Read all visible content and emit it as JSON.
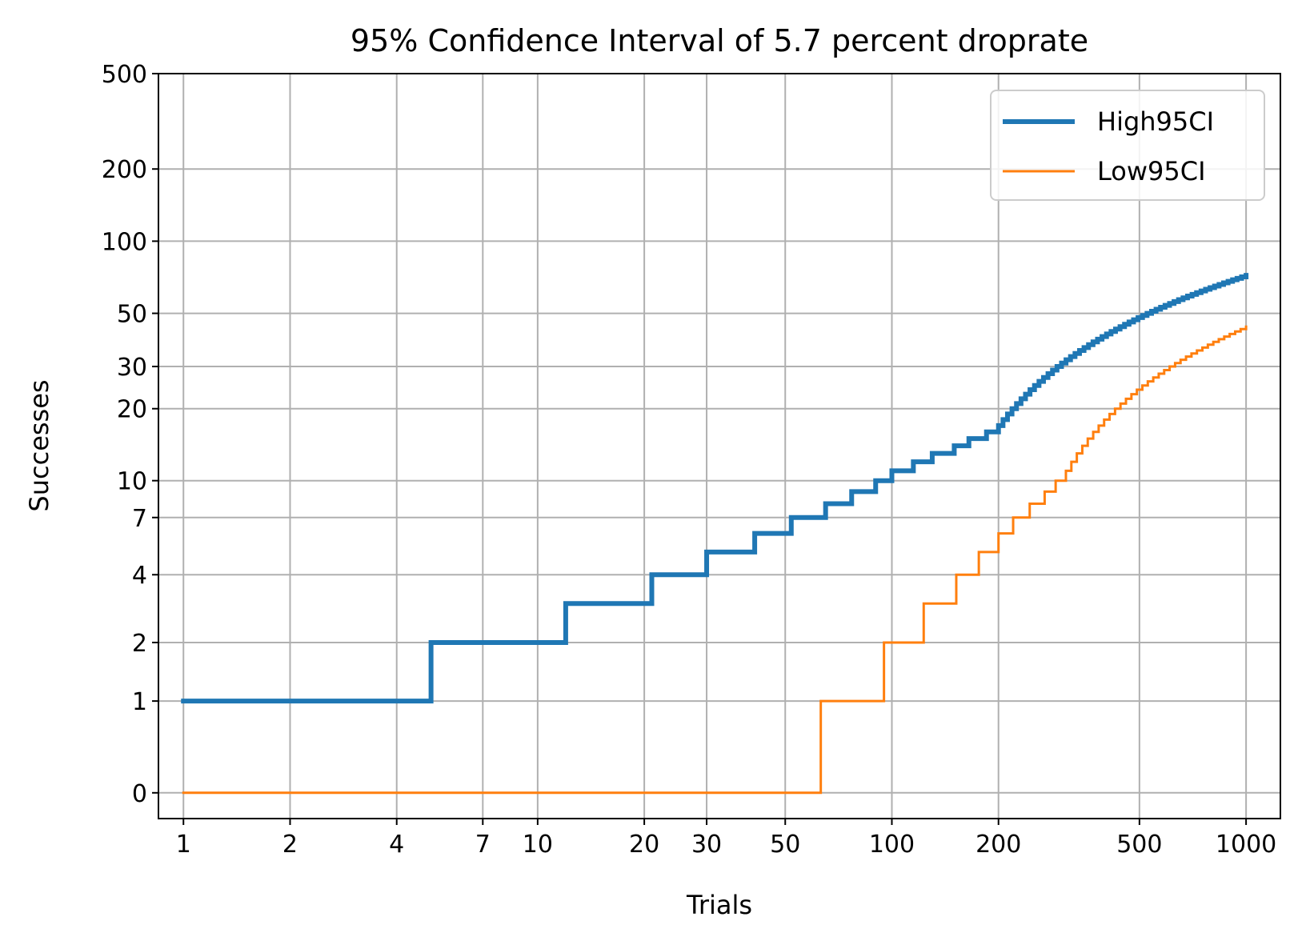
{
  "chart_data": {
    "type": "line",
    "title": "95% Confidence Interval of 5.7 percent droprate",
    "xlabel": "Trials",
    "ylabel": "Successes",
    "x_scale": "log",
    "y_scale": "custom",
    "xlim": [
      0.85,
      1250
    ],
    "ylim": [
      -0.25,
      500
    ],
    "x_ticks": [
      1,
      2,
      4,
      7,
      10,
      20,
      30,
      50,
      100,
      200,
      500,
      1000
    ],
    "x_tick_labels": [
      "1",
      "2",
      "4",
      "7",
      "10",
      "20",
      "30",
      "50",
      "100",
      "200",
      "500",
      "1000"
    ],
    "y_ticks": [
      0,
      1,
      2,
      4,
      7,
      10,
      20,
      30,
      50,
      100,
      200,
      500
    ],
    "y_tick_labels": [
      "0",
      "1",
      "2",
      "4",
      "7",
      "10",
      "20",
      "30",
      "50",
      "100",
      "200",
      "500"
    ],
    "grid": true,
    "legend_position": "top-right",
    "series": [
      {
        "name": "High95CI",
        "color": "#1f77b4",
        "step": "post",
        "x": [
          1,
          5,
          12,
          21,
          30,
          41,
          52,
          65,
          77,
          90,
          100,
          115,
          130,
          150,
          165,
          185,
          200
        ],
        "y": [
          1,
          2,
          3,
          4,
          5,
          6,
          7,
          8,
          9,
          10,
          11,
          12,
          13,
          14,
          15,
          16,
          17
        ],
        "tail_x": [
          200,
          1000
        ],
        "tail_y": [
          17,
          72
        ]
      },
      {
        "name": "Low95CI",
        "color": "#ff7f0e",
        "step": "post",
        "x": [
          1,
          63,
          95,
          123,
          152,
          176,
          200,
          220,
          245,
          270,
          290,
          310
        ],
        "y": [
          0,
          1,
          2,
          3,
          4,
          5,
          6,
          7,
          8,
          9,
          10,
          11
        ],
        "tail_x": [
          310,
          1000
        ],
        "tail_y": [
          11,
          44
        ]
      }
    ]
  }
}
